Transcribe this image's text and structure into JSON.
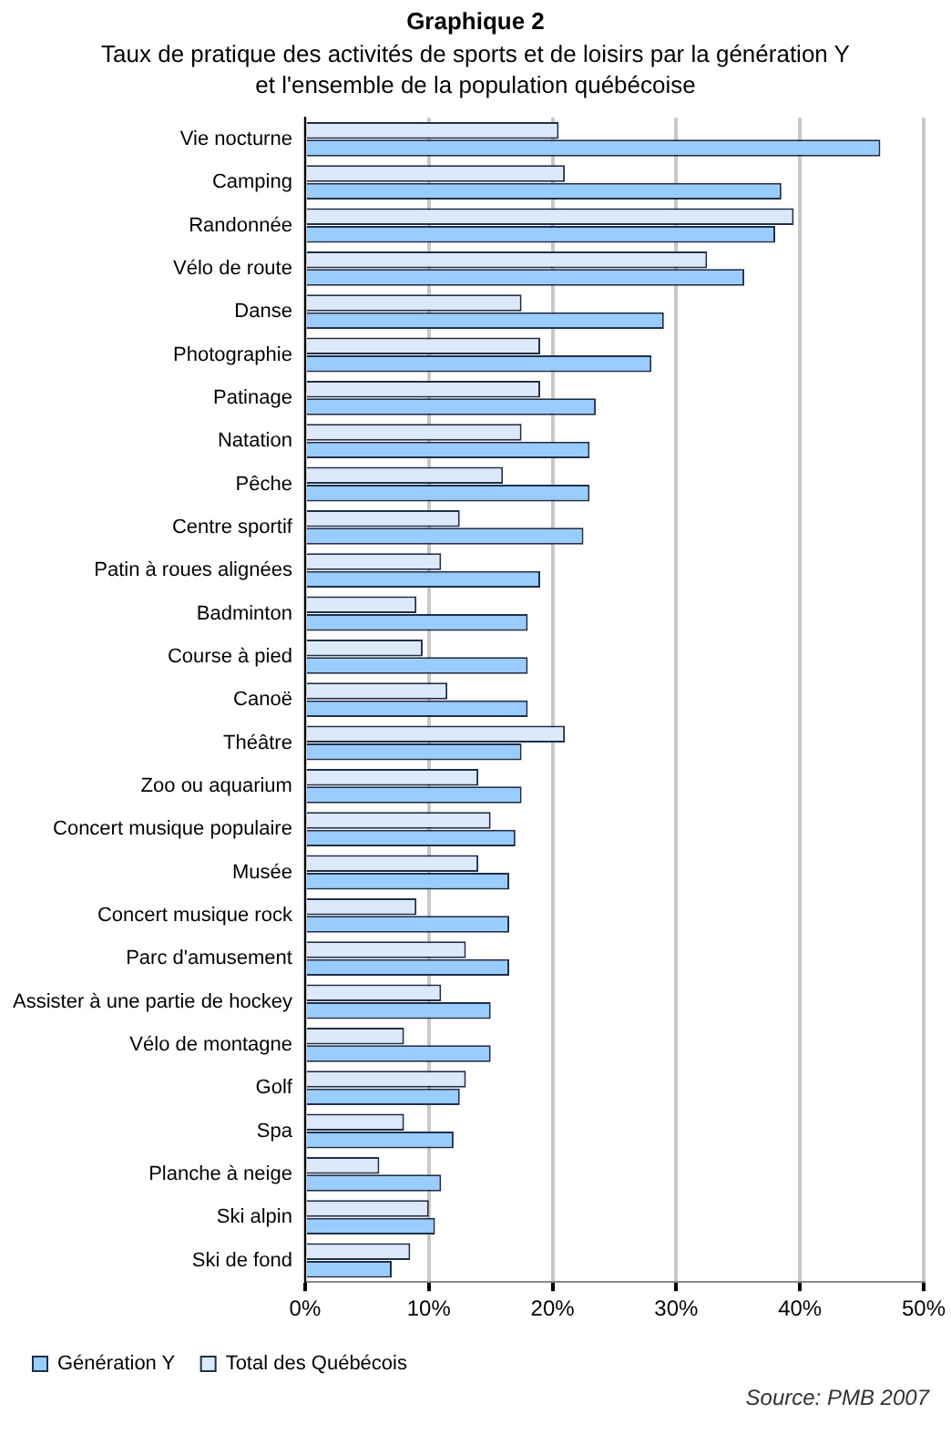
{
  "chart_data": {
    "type": "bar",
    "orientation": "horizontal",
    "title": "Graphique 2",
    "subtitle": "Taux de pratique des activités de sports et de loisirs par la génération Y et l'ensemble de la population québécoise",
    "categories": [
      "Vie nocturne",
      "Camping",
      "Randonnée",
      "Vélo de route",
      "Danse",
      "Photographie",
      "Patinage",
      "Natation",
      "Pêche",
      "Centre sportif",
      "Patin à roues alignées",
      "Badminton",
      "Course à pied",
      "Canoë",
      "Théâtre",
      "Zoo ou aquarium",
      "Concert musique populaire",
      "Musée",
      "Concert musique rock",
      "Parc d'amusement",
      "Assister à une partie de hockey",
      "Vélo de montagne",
      "Golf",
      "Spa",
      "Planche à neige",
      "Ski alpin",
      "Ski de fond"
    ],
    "series": [
      {
        "name": "Total des Québécois",
        "color": "#dce9f8",
        "values": [
          20.5,
          21,
          39.5,
          32.5,
          17.5,
          19,
          19,
          17.5,
          16,
          12.5,
          11,
          9,
          9.5,
          11.5,
          21,
          14,
          15,
          14,
          9,
          13,
          11,
          8,
          13,
          8,
          6,
          10,
          8.5
        ]
      },
      {
        "name": "Génération Y",
        "color": "#99ccff",
        "values": [
          46.5,
          38.5,
          38,
          35.5,
          29,
          28,
          23.5,
          23,
          23,
          22.5,
          19,
          18,
          18,
          18,
          17.5,
          17.5,
          17,
          16.5,
          16.5,
          16.5,
          15,
          15,
          12.5,
          12,
          11,
          10.5,
          7
        ]
      }
    ],
    "xlim": [
      0,
      50
    ],
    "xticks": [
      {
        "value": 0,
        "label": "0%"
      },
      {
        "value": 10,
        "label": "10%"
      },
      {
        "value": 20,
        "label": "20%"
      },
      {
        "value": 30,
        "label": "30%"
      },
      {
        "value": 40,
        "label": "40%"
      },
      {
        "value": 50,
        "label": "50%"
      }
    ],
    "grid": "x",
    "legend": "bottom",
    "annotations": [
      "Source: PMB 2007"
    ]
  }
}
